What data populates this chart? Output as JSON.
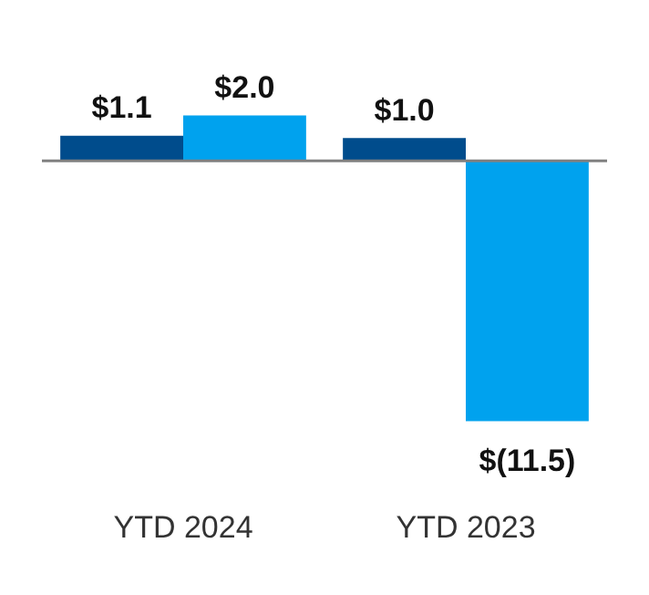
{
  "chart_data": {
    "type": "bar",
    "categories": [
      "YTD 2024",
      "YTD 2023"
    ],
    "series": [
      {
        "color": "#004c8c",
        "values": [
          1.1,
          1.0
        ],
        "value_labels": [
          "$1.1",
          "$1.0"
        ]
      },
      {
        "color": "#00a2ee",
        "values": [
          2.0,
          -11.5
        ],
        "value_labels": [
          "$2.0",
          "$(11.5)"
        ]
      }
    ],
    "grid": false,
    "legend": false
  }
}
